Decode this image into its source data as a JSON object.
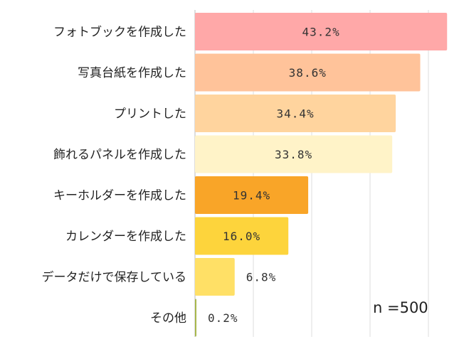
{
  "chart_data": {
    "type": "bar",
    "orientation": "horizontal",
    "categories": [
      "フォトブックを作成した",
      "写真台紙を作成した",
      "プリントした",
      "飾れるパネルを作成した",
      "キーホルダーを作成した",
      "カレンダーを作成した",
      "データだけで保存している",
      "その他"
    ],
    "values": [
      43.2,
      38.6,
      34.4,
      33.8,
      19.4,
      16.0,
      6.8,
      0.2
    ],
    "value_labels": [
      "43.2%",
      "38.6%",
      "34.4%",
      "33.8%",
      "19.4%",
      "16.0%",
      "6.8%",
      "0.2%"
    ],
    "colors": [
      "#ffa8a8",
      "#ffc39a",
      "#ffd49e",
      "#fff3c8",
      "#f9a528",
      "#fdd43c",
      "#ffe066",
      "#a8b84c"
    ],
    "xlim": [
      0,
      45
    ],
    "grid": true,
    "annotation": "n =500"
  }
}
